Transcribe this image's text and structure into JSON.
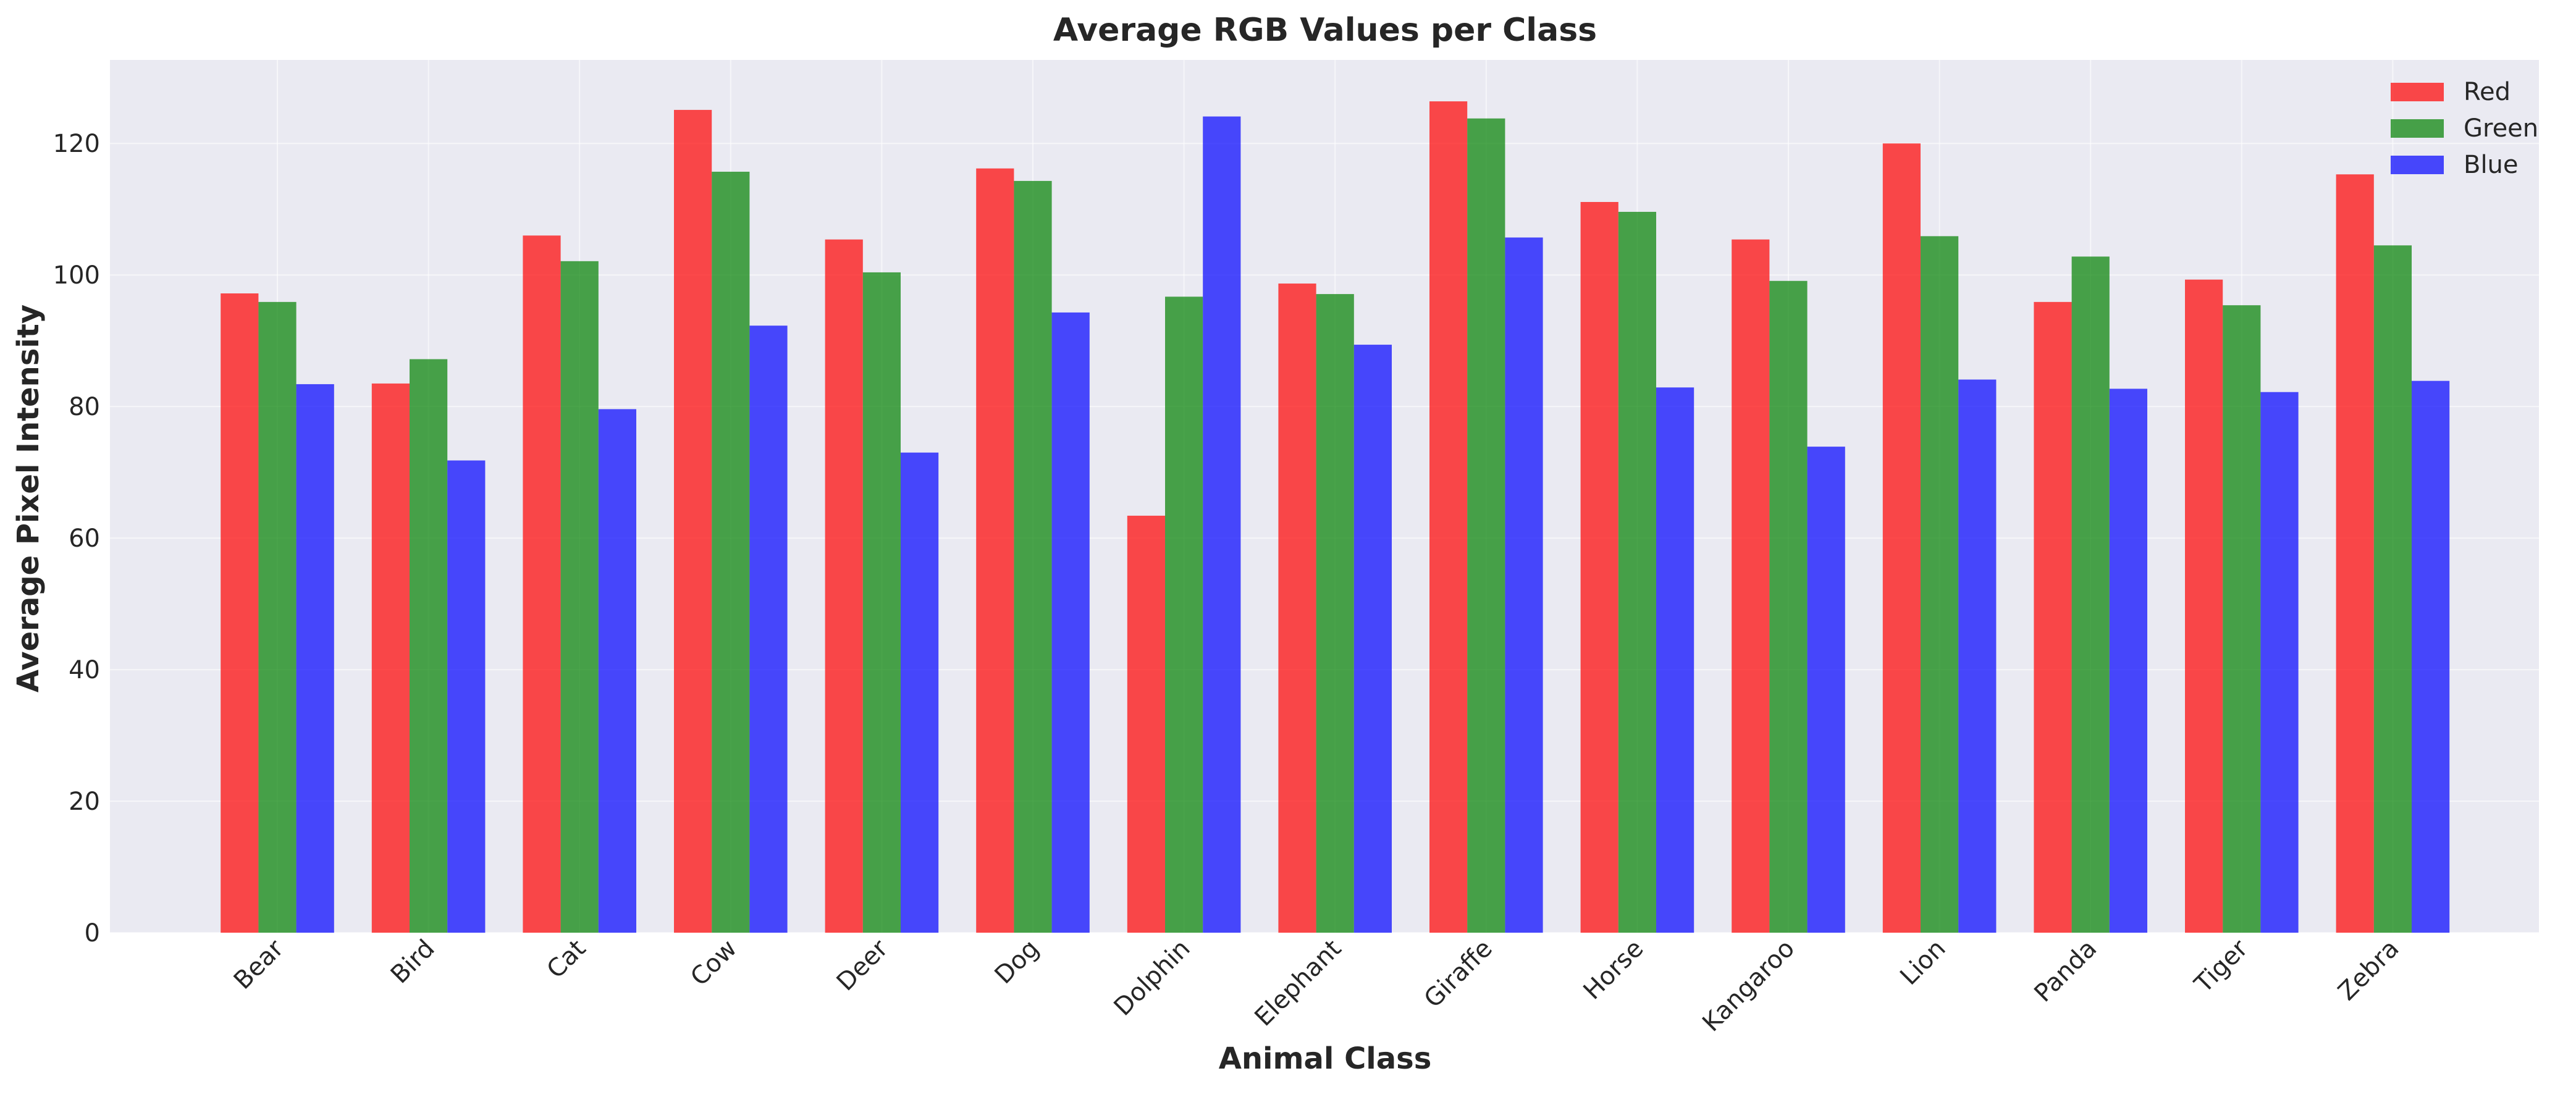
{
  "chart_data": {
    "type": "bar",
    "title": "Average RGB Values per Class",
    "xlabel": "Animal Class",
    "ylabel": "Average Pixel Intensity",
    "ylim": [
      0,
      132.7
    ],
    "yticks": [
      0,
      20,
      40,
      60,
      80,
      100,
      120
    ],
    "grid": true,
    "legend_position": "top-right",
    "categories": [
      "Bear",
      "Bird",
      "Cat",
      "Cow",
      "Deer",
      "Dog",
      "Dolphin",
      "Elephant",
      "Giraffe",
      "Horse",
      "Kangaroo",
      "Lion",
      "Panda",
      "Tiger",
      "Zebra"
    ],
    "series": [
      {
        "name": "Red",
        "color": "#ff0000",
        "values": [
          97.2,
          83.5,
          106.0,
          125.1,
          105.4,
          116.2,
          63.4,
          98.7,
          126.4,
          111.1,
          105.4,
          120.0,
          95.9,
          99.3,
          115.3
        ]
      },
      {
        "name": "Green",
        "color": "#008000",
        "values": [
          95.9,
          87.2,
          102.1,
          115.7,
          100.4,
          114.3,
          96.7,
          97.1,
          123.8,
          109.6,
          99.1,
          105.9,
          102.8,
          95.4,
          104.5
        ]
      },
      {
        "name": "Blue",
        "color": "#0000ff",
        "values": [
          83.4,
          71.8,
          79.6,
          92.3,
          73.0,
          94.3,
          124.1,
          89.4,
          105.7,
          82.9,
          73.9,
          84.1,
          82.7,
          82.2,
          83.9
        ]
      }
    ]
  }
}
